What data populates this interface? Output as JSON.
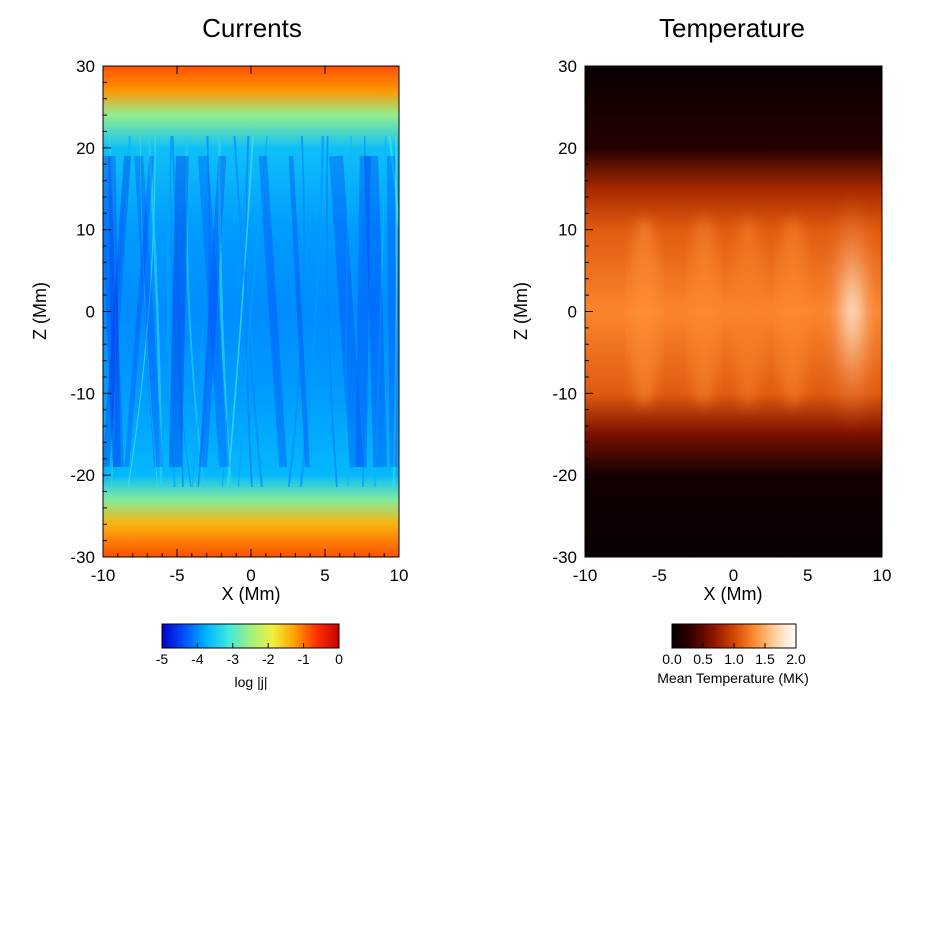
{
  "chart_data": [
    {
      "type": "heatmap",
      "title": "Currents",
      "xlabel": "X (Mm)",
      "ylabel": "Z (Mm)",
      "xlim": [
        -10,
        10
      ],
      "ylim": [
        -30,
        30
      ],
      "x_ticks": [
        "-10",
        "-5",
        "0",
        "5",
        "10"
      ],
      "y_ticks": [
        "30",
        "20",
        "10",
        "0",
        "-10",
        "-20",
        "-30"
      ],
      "colorbar": {
        "label": "log |j|",
        "range": [
          -5,
          0
        ],
        "ticks": [
          "-5",
          "-4",
          "-3",
          "-2",
          "-1",
          "0"
        ],
        "colormap": [
          "#0000c8",
          "#0050ff",
          "#00b4ff",
          "#40e8e0",
          "#a0f080",
          "#f0f040",
          "#ffa000",
          "#ff3000",
          "#c80000"
        ]
      },
      "profile_z": [
        30,
        27,
        24,
        20,
        10,
        0,
        -10,
        -20,
        -23,
        -26,
        -30
      ],
      "profile_log_j": [
        -0.8,
        -1.2,
        -2.6,
        -3.6,
        -3.9,
        -4.0,
        -3.9,
        -3.7,
        -2.7,
        -1.4,
        -0.8
      ]
    },
    {
      "type": "heatmap",
      "title": "Temperature",
      "xlabel": "X (Mm)",
      "ylabel": "Z (Mm)",
      "xlim": [
        -10,
        10
      ],
      "ylim": [
        -30,
        30
      ],
      "x_ticks": [
        "-10",
        "-5",
        "0",
        "5",
        "10"
      ],
      "y_ticks": [
        "30",
        "20",
        "10",
        "0",
        "-10",
        "-20",
        "-30"
      ],
      "colorbar": {
        "label": "Mean Temperature (MK)",
        "range": [
          0.0,
          2.0
        ],
        "ticks": [
          "0.0",
          "0.5",
          "1.0",
          "1.5",
          "2.0"
        ],
        "colormap": [
          "#000000",
          "#3c0000",
          "#8c1400",
          "#d24600",
          "#ff8c32",
          "#ffd2a0",
          "#ffffff"
        ]
      },
      "profile_z": [
        30,
        20,
        15,
        10,
        0,
        -10,
        -15,
        -20,
        -30
      ],
      "profile_T": [
        0.05,
        0.2,
        0.8,
        1.1,
        1.3,
        1.1,
        0.6,
        0.1,
        0.05
      ],
      "hotspot": {
        "x": 8,
        "z": 0,
        "T": 1.9
      }
    }
  ]
}
